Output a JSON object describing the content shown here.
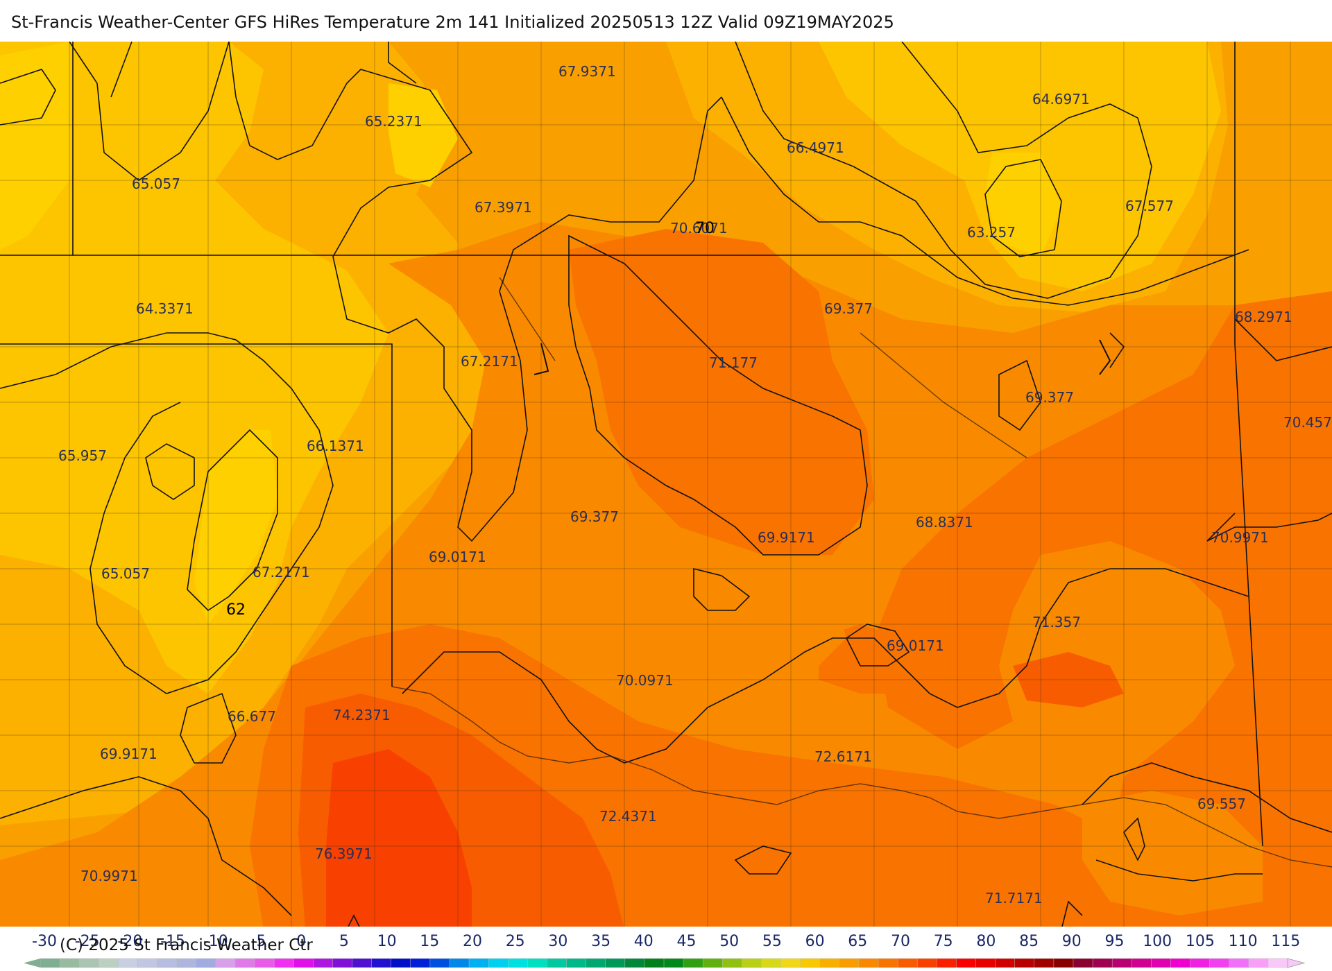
{
  "title": "St-Francis Weather-Center GFS HiRes Temperature 2m  141 Initialized 20250513 12Z Valid 09Z19MAY2025",
  "copyright": "(C) 2025 St Francis Weather Ctr",
  "map": {
    "temperature_labels": [
      {
        "text": "67.9371",
        "tone": "orange"
      },
      {
        "text": "65.2371",
        "tone": "orange"
      },
      {
        "text": "65.057",
        "tone": "yellow"
      },
      {
        "text": "67.3971",
        "tone": "orange"
      },
      {
        "text": "66.4971",
        "tone": "orange"
      },
      {
        "text": "64.6971",
        "tone": "orange"
      },
      {
        "text": "67.577",
        "tone": "orange"
      },
      {
        "text": "70.6071",
        "tone": "dark-orange"
      },
      {
        "text": "63.257",
        "tone": "light-orange"
      },
      {
        "text": "64.3371",
        "tone": "yellow"
      },
      {
        "text": "69.377",
        "tone": "dark-orange"
      },
      {
        "text": "68.2971",
        "tone": "dark-orange"
      },
      {
        "text": "67.2171",
        "tone": "orange"
      },
      {
        "text": "71.177",
        "tone": "dark-orange"
      },
      {
        "text": "69.377",
        "tone": "dark-orange"
      },
      {
        "text": "70.457",
        "tone": "dark-orange"
      },
      {
        "text": "65.957",
        "tone": "yellow"
      },
      {
        "text": "66.1371",
        "tone": "yellow"
      },
      {
        "text": "69.377",
        "tone": "dark-orange"
      },
      {
        "text": "69.9171",
        "tone": "dark-orange"
      },
      {
        "text": "68.8371",
        "tone": "dark-orange"
      },
      {
        "text": "70.9971",
        "tone": "dark-orange"
      },
      {
        "text": "69.0171",
        "tone": "dark-orange"
      },
      {
        "text": "65.057",
        "tone": "yellow"
      },
      {
        "text": "67.2171",
        "tone": "yellow"
      },
      {
        "text": "71.357",
        "tone": "red-orange"
      },
      {
        "text": "70.0971",
        "tone": "dark-orange"
      },
      {
        "text": "69.0171",
        "tone": "dark-orange"
      },
      {
        "text": "66.677",
        "tone": "orange"
      },
      {
        "text": "74.2371",
        "tone": "red-orange"
      },
      {
        "text": "69.9171",
        "tone": "orange"
      },
      {
        "text": "72.6171",
        "tone": "dark-orange"
      },
      {
        "text": "72.4371",
        "tone": "dark-orange"
      },
      {
        "text": "69.557",
        "tone": "orange"
      },
      {
        "text": "70.9971",
        "tone": "orange"
      },
      {
        "text": "76.3971",
        "tone": "red"
      },
      {
        "text": "71.7171",
        "tone": "dark-orange"
      }
    ],
    "isoline_labels": [
      "70",
      "62"
    ]
  },
  "legend": {
    "ticks": [
      "-30",
      "-25",
      "-20",
      "-15",
      "-10",
      "-5",
      "0",
      "5",
      "10",
      "15",
      "20",
      "25",
      "30",
      "35",
      "40",
      "45",
      "50",
      "55",
      "60",
      "65",
      "70",
      "75",
      "80",
      "85",
      "90",
      "95",
      "100",
      "105",
      "110",
      "115"
    ],
    "colors": [
      "#7fae92",
      "#98bba0",
      "#a9c4b0",
      "#bcd0c2",
      "#c8cfe0",
      "#c2c6e0",
      "#b6bde0",
      "#aeb6de",
      "#a2abe0",
      "#d8a0e8",
      "#e07ae8",
      "#e85ae8",
      "#f030f0",
      "#e010e8",
      "#b014e0",
      "#8010d8",
      "#5010d0",
      "#2010d0",
      "#0010c8",
      "#0020d8",
      "#0050e0",
      "#0088e8",
      "#00b0f0",
      "#00d0f0",
      "#00e0e0",
      "#00e0c0",
      "#00c8a0",
      "#00b888",
      "#00a870",
      "#009858",
      "#008838",
      "#00801a",
      "#00881a",
      "#30a010",
      "#60b010",
      "#90c010",
      "#b8d018",
      "#d8d818",
      "#f0d818",
      "#f8c800",
      "#f8b000",
      "#f89c00",
      "#f88800",
      "#f87400",
      "#f85c00",
      "#f84000",
      "#f82000",
      "#f80000",
      "#e80000",
      "#d00000",
      "#b80000",
      "#a00000",
      "#880000",
      "#8a0030",
      "#a00050",
      "#b80070",
      "#d00090",
      "#e000b0",
      "#f000d0",
      "#f020e0",
      "#f040f0",
      "#f070f8",
      "#f8a0f8",
      "#f8c8f8"
    ]
  }
}
